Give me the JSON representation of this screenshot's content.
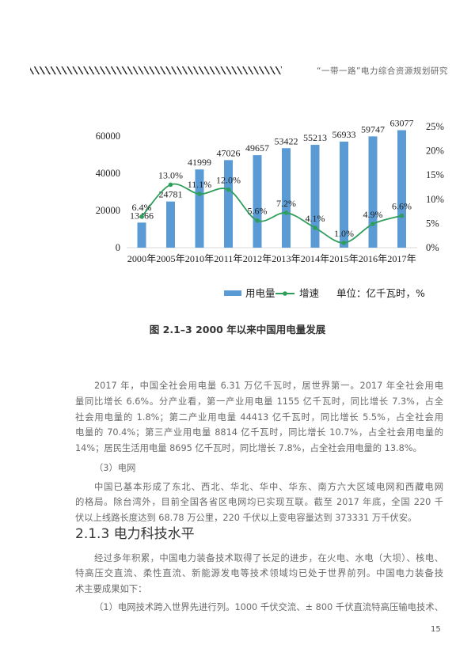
{
  "header": {
    "running_title": "“一带一路”电力综合资源规划研究"
  },
  "chart_data": {
    "type": "bar+line",
    "categories": [
      "2000年",
      "2005年",
      "2010年",
      "2011年",
      "2012年",
      "2013年",
      "2014年",
      "2015年",
      "2016年",
      "2017年"
    ],
    "series": [
      {
        "name": "用电量",
        "type": "bar",
        "axis": "left",
        "values": [
          13466,
          24781,
          41999,
          47026,
          49657,
          53422,
          55213,
          56933,
          59747,
          63077
        ],
        "labels": [
          "13466",
          "24781",
          "41999",
          "47026",
          "49657",
          "53422",
          "55213",
          "56933",
          "59747",
          "63077"
        ],
        "color": "#5b9bd5"
      },
      {
        "name": "增速",
        "type": "line",
        "axis": "right",
        "values": [
          6.4,
          13.0,
          11.1,
          12.0,
          5.6,
          7.2,
          4.1,
          1.0,
          4.9,
          6.6
        ],
        "labels": [
          "6.4%",
          "13.0%",
          "11.1%",
          "12.0%",
          "5.6%",
          "7.2%",
          "4.1%",
          "1.0%",
          "4.9%",
          "6.6%"
        ],
        "color": "#2e9e5b"
      }
    ],
    "left_axis": {
      "ylim": [
        0,
        65000
      ],
      "ticks": [
        "0",
        "20000",
        "40000",
        "60000"
      ]
    },
    "right_axis": {
      "ylim": [
        0,
        25
      ],
      "ticks": [
        "0%",
        "5%",
        "10%",
        "15%",
        "20%",
        "25%"
      ]
    },
    "unit_note": "单位：亿千瓦时，%",
    "legend": "bottom",
    "grid": false
  },
  "caption": "图 2.1–3  2000 年以来中国用电量发展",
  "body": {
    "p1": [
      "2017 年，中国全社会用电量 6.31 万亿千瓦时，居世界第一。2017 年全社会用电",
      "量同比增长 6.6%。分产业看，第一产业用电量 1155 亿千瓦时，同比增长 7.3%，占全",
      "社会用电量的 1.8%；第二产业用电量 44413 亿千瓦时，同比增长 5.5%，占全社会用",
      "电量的 70.4%；第三产业用电量 8814 亿千瓦时，同比增长 10.7%，占全社会用电量的",
      "14%；居民生活用电量 8695 亿千瓦时，同比增长 7.8%，占全社会用电量的 13.8%。"
    ],
    "sub3": "（3）电网",
    "p2": [
      "中国已基本形成了东北、西北、华北、华中、华东、南方六大区域电网和西藏电网",
      "的格局。除台湾外，目前全国各省区电网均已实现互联。截至 2017 年底，全国 220 千",
      "伏以上线路长度达到 68.78 万公里，220 千伏以上变电容量达到 373331 万千伏安。"
    ],
    "heading": "2.1.3 电力科技水平",
    "p3": [
      "经过多年积累，中国电力装备技术取得了长足的进步，在火电、水电（大坝）、核电、",
      "特高压交直流、柔性直流、新能源发电等技术领域均已处于世界前列。中国电力装备技",
      "术主要成果如下："
    ],
    "p4": "（1）电网技术跨入世界先进行列。1000 千伏交流、± 800 千伏直流特高压输电技术、"
  },
  "page_number": "15"
}
